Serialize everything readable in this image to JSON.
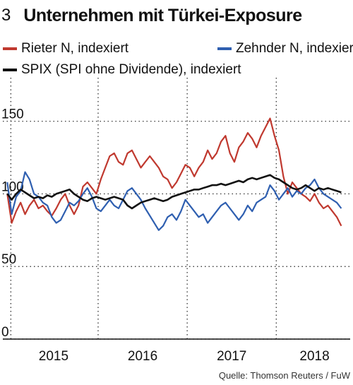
{
  "figure_number": "3",
  "source": "Quelle: Thomson Reuters / FuW",
  "chart_data": {
    "type": "line",
    "title": "Unternehmen mit Türkei-Exposure",
    "xlabel": "",
    "ylabel": "",
    "x_ticks": [
      "2015",
      "2016",
      "2017",
      "2018"
    ],
    "y_ticks": [
      0,
      50,
      100,
      150
    ],
    "xlim": [
      2014.55,
      2018.45
    ],
    "ylim": [
      0,
      180
    ],
    "grid": "dotted vertical year lines",
    "legend_position": "top",
    "x": [
      2014.6,
      2014.65,
      2014.7,
      2014.75,
      2014.8,
      2014.85,
      2014.9,
      2014.95,
      2015.0,
      2015.05,
      2015.1,
      2015.15,
      2015.2,
      2015.25,
      2015.3,
      2015.35,
      2015.4,
      2015.45,
      2015.5,
      2015.55,
      2015.6,
      2015.65,
      2015.7,
      2015.75,
      2015.8,
      2015.85,
      2015.9,
      2015.95,
      2016.0,
      2016.05,
      2016.1,
      2016.15,
      2016.2,
      2016.25,
      2016.3,
      2016.35,
      2016.4,
      2016.45,
      2016.5,
      2016.55,
      2016.6,
      2016.65,
      2016.7,
      2016.75,
      2016.8,
      2016.85,
      2016.9,
      2016.95,
      2017.0,
      2017.05,
      2017.1,
      2017.15,
      2017.2,
      2017.25,
      2017.3,
      2017.35,
      2017.4,
      2017.45,
      2017.5,
      2017.55,
      2017.6,
      2017.65,
      2017.7,
      2017.75,
      2017.8,
      2017.85,
      2017.9,
      2017.95,
      2018.0,
      2018.05,
      2018.1,
      2018.15,
      2018.2,
      2018.25,
      2018.3,
      2018.35
    ],
    "series": [
      {
        "name": "Rieter N, indexiert",
        "color": "#c0392f",
        "values": [
          100,
          80,
          88,
          94,
          86,
          92,
          96,
          90,
          92,
          88,
          85,
          90,
          96,
          100,
          92,
          86,
          92,
          105,
          108,
          104,
          100,
          110,
          118,
          126,
          128,
          122,
          120,
          128,
          130,
          124,
          118,
          122,
          126,
          122,
          118,
          112,
          110,
          104,
          108,
          114,
          120,
          118,
          112,
          118,
          122,
          130,
          124,
          128,
          136,
          140,
          128,
          122,
          132,
          136,
          142,
          138,
          132,
          140,
          146,
          152,
          140,
          130,
          112,
          100,
          108,
          104,
          100,
          98,
          95,
          100,
          94,
          90,
          92,
          88,
          84,
          78
        ]
      },
      {
        "name": "Zehnder N, indexiert",
        "color": "#2f5fb0",
        "values": [
          108,
          86,
          98,
          102,
          115,
          110,
          100,
          98,
          94,
          92,
          84,
          80,
          82,
          88,
          94,
          92,
          95,
          100,
          104,
          98,
          90,
          88,
          92,
          96,
          92,
          90,
          96,
          102,
          104,
          100,
          96,
          90,
          85,
          80,
          75,
          78,
          84,
          86,
          82,
          88,
          96,
          92,
          88,
          84,
          86,
          80,
          84,
          88,
          92,
          94,
          90,
          86,
          82,
          86,
          92,
          88,
          94,
          96,
          98,
          106,
          102,
          96,
          100,
          104,
          98,
          102,
          100,
          104,
          106,
          110,
          104,
          100,
          98,
          96,
          94,
          90
        ]
      },
      {
        "name": "SPIX (SPI ohne Dividende), indexiert",
        "color": "#111111",
        "values": [
          100,
          96,
          100,
          103,
          101,
          99,
          97,
          98,
          97,
          99,
          98,
          100,
          101,
          102,
          103,
          100,
          98,
          96,
          95,
          97,
          98,
          97,
          96,
          97,
          98,
          97,
          96,
          92,
          90,
          92,
          94,
          95,
          96,
          97,
          96,
          95,
          96,
          98,
          99,
          100,
          101,
          102,
          103,
          103,
          104,
          105,
          106,
          106,
          107,
          106,
          107,
          108,
          109,
          108,
          110,
          111,
          110,
          111,
          112,
          113,
          111,
          110,
          108,
          106,
          104,
          103,
          104,
          106,
          104,
          102,
          104,
          103,
          104,
          103,
          102,
          101
        ]
      }
    ]
  }
}
